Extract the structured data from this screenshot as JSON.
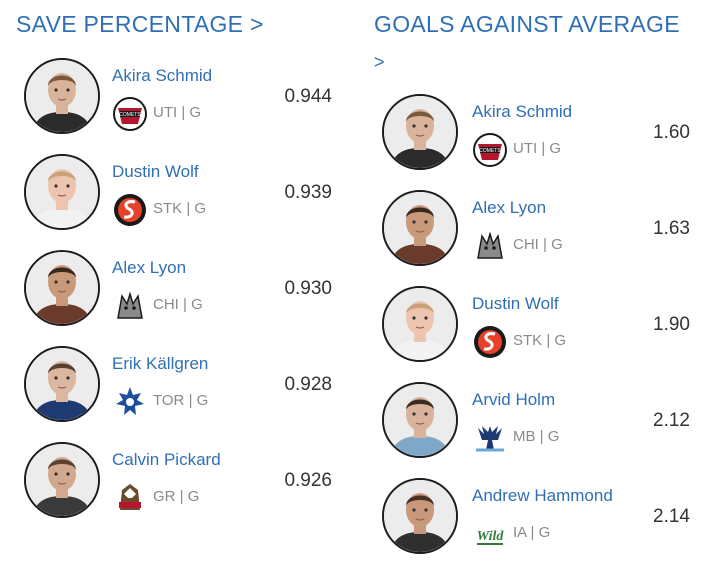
{
  "save_percentage": {
    "title": "SAVE PERCENTAGE",
    "arrow": ">",
    "players": [
      {
        "name": "Akira Schmid",
        "team": "UTI",
        "position": "G",
        "stat": "0.944",
        "logo": "comets-logo",
        "skin": "#d9b49a",
        "hair": "#7a5a3a",
        "jersey": "#2b2b2b"
      },
      {
        "name": "Dustin Wolf",
        "team": "STK",
        "position": "G",
        "stat": "0.939",
        "logo": "heat-logo",
        "skin": "#edc5ae",
        "hair": "#c9a27a",
        "jersey": "#f2f2f2"
      },
      {
        "name": "Alex Lyon",
        "team": "CHI",
        "position": "G",
        "stat": "0.930",
        "logo": "wolves-logo",
        "skin": "#c99a7a",
        "hair": "#3a2a1e",
        "jersey": "#6a3a2a"
      },
      {
        "name": "Erik Källgren",
        "team": "TOR",
        "position": "G",
        "stat": "0.928",
        "logo": "marlies-logo",
        "skin": "#dcb7a0",
        "hair": "#5a4030",
        "jersey": "#1d3b72"
      },
      {
        "name": "Calvin Pickard",
        "team": "GR",
        "position": "G",
        "stat": "0.926",
        "logo": "griffins-logo",
        "skin": "#d2a98e",
        "hair": "#5c4432",
        "jersey": "#3a3a3a"
      }
    ]
  },
  "goals_against_average": {
    "title": "GOALS AGAINST AVERAGE",
    "arrow": ">",
    "players": [
      {
        "name": "Akira Schmid",
        "team": "UTI",
        "position": "G",
        "stat": "1.60",
        "logo": "comets-logo",
        "skin": "#d9b49a",
        "hair": "#7a5a3a",
        "jersey": "#2b2b2b"
      },
      {
        "name": "Alex Lyon",
        "team": "CHI",
        "position": "G",
        "stat": "1.63",
        "logo": "wolves-logo",
        "skin": "#c99a7a",
        "hair": "#3a2a1e",
        "jersey": "#6a3a2a"
      },
      {
        "name": "Dustin Wolf",
        "team": "STK",
        "position": "G",
        "stat": "1.90",
        "logo": "heat-logo",
        "skin": "#edc5ae",
        "hair": "#c9a27a",
        "jersey": "#f2f2f2"
      },
      {
        "name": "Arvid Holm",
        "team": "MB",
        "position": "G",
        "stat": "2.12",
        "logo": "moose-logo",
        "skin": "#d8b29a",
        "hair": "#3a2c22",
        "jersey": "#7fa8c8"
      },
      {
        "name": "Andrew Hammond",
        "team": "IA",
        "position": "G",
        "stat": "2.14",
        "logo": "wild-logo",
        "skin": "#c9977a",
        "hair": "#4a3224",
        "jersey": "#2f2f2f"
      }
    ]
  },
  "separator": "|"
}
